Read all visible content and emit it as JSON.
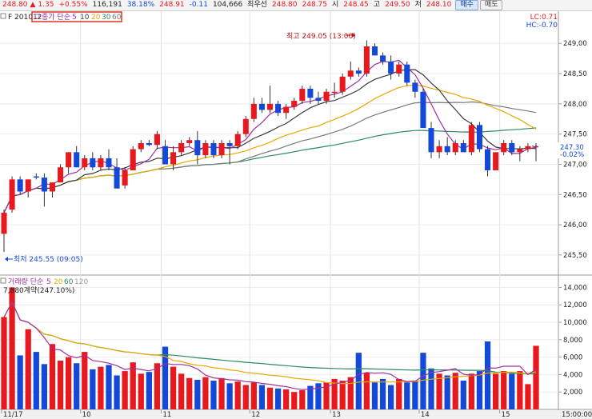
{
  "toolbar": {
    "price": "248.80",
    "arrow": "▲",
    "change": "1.35",
    "pct": "+0.55%",
    "volume": "116,191",
    "ratio": "38.18%",
    "bid": "248.91",
    "bid_chg": "-0.11",
    "open_int": "104,666",
    "best_label": "최우선",
    "best_bid": "248.80",
    "best_ask": "248.75",
    "open_label": "시",
    "open": "248.45",
    "high_label": "고",
    "high": "249.50",
    "low_label": "저",
    "low": "248.10",
    "buy_btn": "매수",
    "sell_btn": "매도"
  },
  "price_panel": {
    "code": "F 201012",
    "ma_label": "종가 단순",
    "ma_periods": [
      "5",
      "10",
      "20",
      "30",
      "60"
    ],
    "lc": "LC:0.71",
    "hc": "HC:-0.70",
    "high_note": "최고 249.05 (13:00)",
    "low_note": "최저 245.55 (09:05)",
    "current_price": "247.30",
    "current_pct": "-0.02%",
    "y_ticks": [
      "249,00",
      "248,50",
      "248,00",
      "247,50",
      "247,00",
      "246,50",
      "246,00",
      "245,50"
    ]
  },
  "volume_panel": {
    "label": "거래량 단순",
    "ma_periods": [
      "5",
      "20",
      "60",
      "120"
    ],
    "contract_note": "7,880계약(247.10%)",
    "y_ticks": [
      "14,000",
      "12,000",
      "10,000",
      "8,000",
      "6,000",
      "4,000",
      "2,000"
    ]
  },
  "x_axis": {
    "labels": [
      "11/17",
      "10",
      "11",
      "12",
      "13",
      "14",
      "15"
    ],
    "end_label": "15:00:00"
  },
  "colors": {
    "up": "#e8191e",
    "down": "#1448d8",
    "ma5": "#a030a0",
    "ma10": "#3a3a3a",
    "ma20": "#e8a800",
    "ma30": "#2a8a5a",
    "ma60": "#7a7a7a"
  },
  "chart_data": {
    "type": "candlestick",
    "candles": [
      {
        "o": 245.85,
        "h": 246.25,
        "l": 245.55,
        "c": 246.2
      },
      {
        "o": 246.25,
        "h": 246.8,
        "l": 246.2,
        "c": 246.75
      },
      {
        "o": 246.75,
        "h": 246.8,
        "l": 246.5,
        "c": 246.55
      },
      {
        "o": 246.55,
        "h": 246.75,
        "l": 246.45,
        "c": 246.75
      },
      {
        "o": 246.8,
        "h": 246.85,
        "l": 246.75,
        "c": 246.78
      },
      {
        "o": 246.78,
        "h": 246.85,
        "l": 246.3,
        "c": 246.55
      },
      {
        "o": 246.55,
        "h": 246.7,
        "l": 246.45,
        "c": 246.7
      },
      {
        "o": 246.7,
        "h": 247.0,
        "l": 246.7,
        "c": 246.95
      },
      {
        "o": 246.95,
        "h": 247.2,
        "l": 246.85,
        "c": 247.2
      },
      {
        "o": 247.2,
        "h": 247.3,
        "l": 246.95,
        "c": 246.95
      },
      {
        "o": 246.95,
        "h": 247.15,
        "l": 246.9,
        "c": 247.1
      },
      {
        "o": 247.1,
        "h": 247.2,
        "l": 246.9,
        "c": 246.95
      },
      {
        "o": 246.95,
        "h": 247.15,
        "l": 246.9,
        "c": 247.1
      },
      {
        "o": 247.1,
        "h": 247.25,
        "l": 246.9,
        "c": 246.95
      },
      {
        "o": 246.95,
        "h": 247.1,
        "l": 246.6,
        "c": 246.6
      },
      {
        "o": 246.65,
        "h": 246.95,
        "l": 246.6,
        "c": 246.9
      },
      {
        "o": 246.9,
        "h": 247.3,
        "l": 246.9,
        "c": 247.25
      },
      {
        "o": 247.25,
        "h": 247.4,
        "l": 247.2,
        "c": 247.35
      },
      {
        "o": 247.35,
        "h": 247.4,
        "l": 247.3,
        "c": 247.32
      },
      {
        "o": 247.32,
        "h": 247.55,
        "l": 247.25,
        "c": 247.5
      },
      {
        "o": 247.3,
        "h": 247.4,
        "l": 247.0,
        "c": 247.0
      },
      {
        "o": 247.0,
        "h": 247.3,
        "l": 246.9,
        "c": 247.2
      },
      {
        "o": 247.2,
        "h": 247.4,
        "l": 247.15,
        "c": 247.35
      },
      {
        "o": 247.35,
        "h": 247.45,
        "l": 247.3,
        "c": 247.4
      },
      {
        "o": 247.4,
        "h": 247.55,
        "l": 247.0,
        "c": 247.15
      },
      {
        "o": 247.15,
        "h": 247.4,
        "l": 247.1,
        "c": 247.35
      },
      {
        "o": 247.35,
        "h": 247.4,
        "l": 247.1,
        "c": 247.15
      },
      {
        "o": 247.15,
        "h": 247.4,
        "l": 247.1,
        "c": 247.35
      },
      {
        "o": 247.35,
        "h": 247.4,
        "l": 247.0,
        "c": 247.3
      },
      {
        "o": 247.3,
        "h": 247.55,
        "l": 247.25,
        "c": 247.5
      },
      {
        "o": 247.5,
        "h": 247.8,
        "l": 247.45,
        "c": 247.75
      },
      {
        "o": 247.75,
        "h": 248.1,
        "l": 247.7,
        "c": 248.0
      },
      {
        "o": 248.0,
        "h": 248.1,
        "l": 247.85,
        "c": 247.9
      },
      {
        "o": 247.9,
        "h": 248.3,
        "l": 247.85,
        "c": 248.0
      },
      {
        "o": 248.0,
        "h": 248.05,
        "l": 247.8,
        "c": 247.85
      },
      {
        "o": 247.85,
        "h": 248.0,
        "l": 247.75,
        "c": 247.95
      },
      {
        "o": 247.95,
        "h": 248.1,
        "l": 247.9,
        "c": 248.05
      },
      {
        "o": 248.05,
        "h": 248.3,
        "l": 248.0,
        "c": 248.25
      },
      {
        "o": 248.25,
        "h": 248.3,
        "l": 248.0,
        "c": 248.1
      },
      {
        "o": 248.1,
        "h": 248.2,
        "l": 248.0,
        "c": 248.05
      },
      {
        "o": 248.05,
        "h": 248.25,
        "l": 248.0,
        "c": 248.2
      },
      {
        "o": 248.2,
        "h": 248.35,
        "l": 248.1,
        "c": 248.2
      },
      {
        "o": 248.2,
        "h": 248.5,
        "l": 248.15,
        "c": 248.45
      },
      {
        "o": 248.45,
        "h": 248.7,
        "l": 248.4,
        "c": 248.55
      },
      {
        "o": 248.55,
        "h": 248.6,
        "l": 248.45,
        "c": 248.5
      },
      {
        "o": 248.5,
        "h": 249.05,
        "l": 248.45,
        "c": 248.95
      },
      {
        "o": 248.95,
        "h": 249.0,
        "l": 248.8,
        "c": 248.8
      },
      {
        "o": 248.8,
        "h": 248.85,
        "l": 248.65,
        "c": 248.7
      },
      {
        "o": 248.7,
        "h": 248.8,
        "l": 248.4,
        "c": 248.5
      },
      {
        "o": 248.5,
        "h": 248.7,
        "l": 248.45,
        "c": 248.65
      },
      {
        "o": 248.65,
        "h": 248.7,
        "l": 248.3,
        "c": 248.35
      },
      {
        "o": 248.35,
        "h": 248.4,
        "l": 248.1,
        "c": 248.2
      },
      {
        "o": 248.2,
        "h": 248.25,
        "l": 247.6,
        "c": 247.6
      },
      {
        "o": 247.6,
        "h": 247.7,
        "l": 247.1,
        "c": 247.2
      },
      {
        "o": 247.2,
        "h": 247.4,
        "l": 247.1,
        "c": 247.3
      },
      {
        "o": 247.3,
        "h": 247.45,
        "l": 247.15,
        "c": 247.2
      },
      {
        "o": 247.2,
        "h": 247.4,
        "l": 247.15,
        "c": 247.35
      },
      {
        "o": 247.35,
        "h": 247.4,
        "l": 247.2,
        "c": 247.2
      },
      {
        "o": 247.2,
        "h": 247.7,
        "l": 247.15,
        "c": 247.65
      },
      {
        "o": 247.65,
        "h": 247.7,
        "l": 247.2,
        "c": 247.25
      },
      {
        "o": 247.25,
        "h": 247.3,
        "l": 246.8,
        "c": 246.9
      },
      {
        "o": 246.9,
        "h": 247.2,
        "l": 246.9,
        "c": 247.2
      },
      {
        "o": 247.2,
        "h": 247.4,
        "l": 247.15,
        "c": 247.35
      },
      {
        "o": 247.35,
        "h": 247.4,
        "l": 247.15,
        "c": 247.2
      },
      {
        "o": 247.2,
        "h": 247.3,
        "l": 247.05,
        "c": 247.25
      },
      {
        "o": 247.25,
        "h": 247.35,
        "l": 247.2,
        "c": 247.3
      },
      {
        "o": 247.3,
        "h": 247.35,
        "l": 247.05,
        "c": 247.3
      }
    ],
    "volume": [
      10600,
      14000,
      6200,
      9200,
      6600,
      5200,
      7500,
      5600,
      6000,
      5300,
      6600,
      4600,
      4900,
      5100,
      3900,
      4400,
      5400,
      4100,
      4300,
      5300,
      7200,
      4900,
      4100,
      3600,
      3400,
      3700,
      3300,
      3600,
      3000,
      3200,
      2800,
      3100,
      2800,
      2500,
      2400,
      2300,
      2000,
      2200,
      2700,
      3000,
      3100,
      3500,
      3300,
      3700,
      6500,
      4200,
      3100,
      3500,
      2800,
      3500,
      3100,
      3300,
      6500,
      4700,
      4100,
      3900,
      4200,
      3300,
      4100,
      4400,
      7800,
      4100,
      4400,
      4100,
      4400,
      2900,
      7300
    ],
    "ylim": [
      245.3,
      249.4
    ],
    "volume_ylim": [
      0,
      14500
    ]
  }
}
